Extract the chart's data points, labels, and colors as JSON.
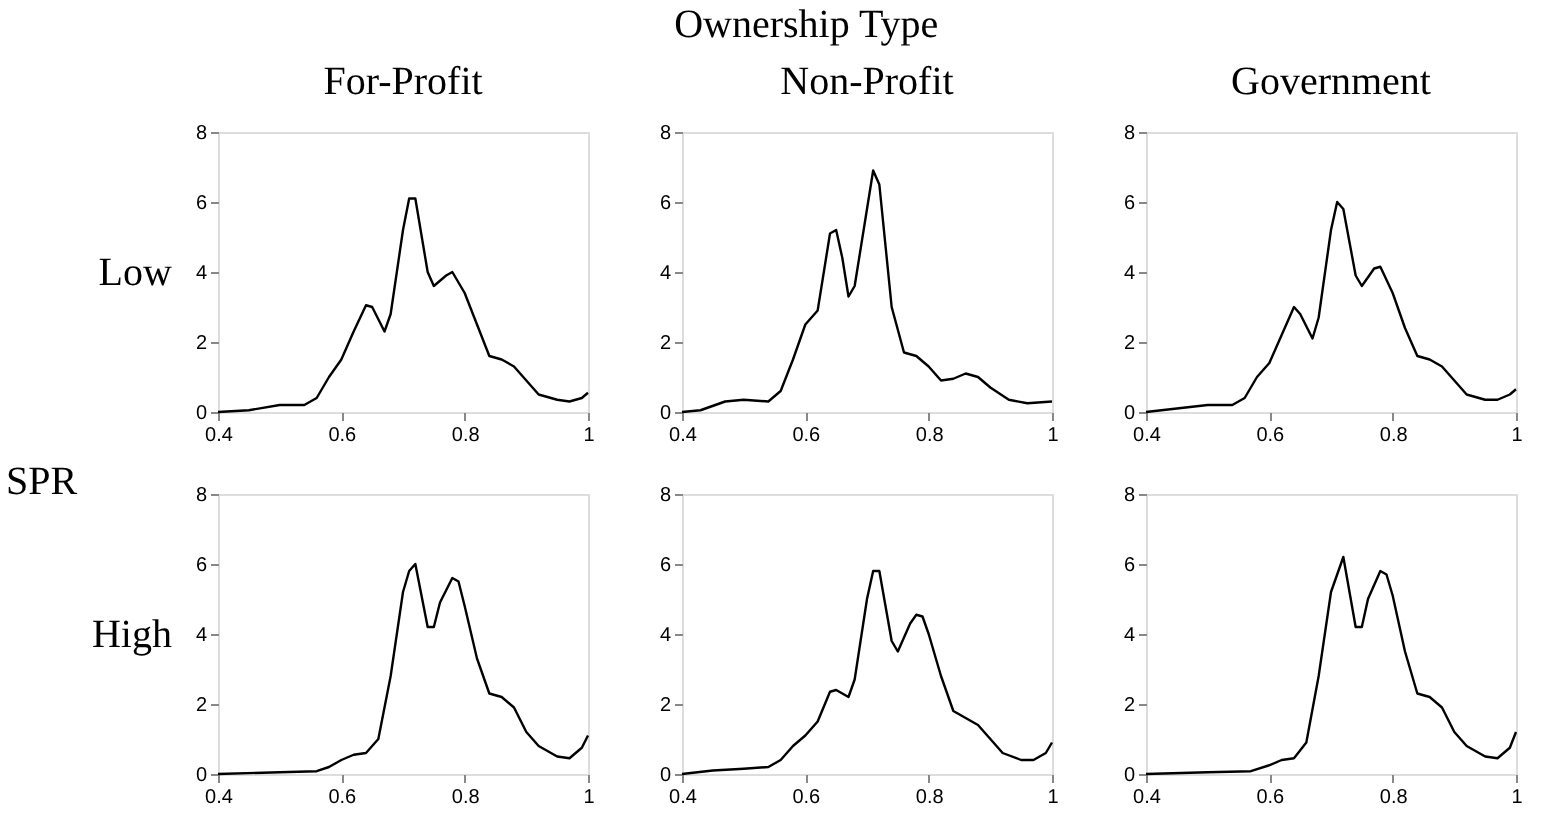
{
  "chart_data": [
    {
      "type": "line",
      "title": "For-Profit",
      "ylabel": "Low",
      "annotations": [
        "Ownership Type",
        "SPR"
      ],
      "color": "#000000",
      "xlim": [
        0.4,
        1
      ],
      "xticks": [
        0.4,
        0.6,
        0.8,
        1
      ],
      "ylim": [
        0,
        8
      ],
      "yticks": [
        0,
        2,
        4,
        6,
        8
      ],
      "grid": false,
      "x": [
        0.4,
        0.45,
        0.5,
        0.54,
        0.56,
        0.58,
        0.6,
        0.62,
        0.64,
        0.65,
        0.67,
        0.68,
        0.7,
        0.71,
        0.72,
        0.74,
        0.75,
        0.77,
        0.78,
        0.8,
        0.82,
        0.84,
        0.86,
        0.88,
        0.9,
        0.92,
        0.95,
        0.97,
        0.99,
        1.0
      ],
      "values": [
        0,
        0.05,
        0.2,
        0.2,
        0.4,
        1.0,
        1.5,
        2.3,
        3.05,
        3.0,
        2.3,
        2.8,
        5.2,
        6.1,
        6.1,
        4.0,
        3.6,
        3.9,
        4.0,
        3.4,
        2.5,
        1.6,
        1.5,
        1.3,
        0.9,
        0.5,
        0.35,
        0.3,
        0.4,
        0.55
      ]
    },
    {
      "type": "line",
      "title": "Non-Profit",
      "color": "#000000",
      "xlim": [
        0.4,
        1
      ],
      "xticks": [
        0.4,
        0.6,
        0.8,
        1
      ],
      "ylim": [
        0,
        8
      ],
      "yticks": [
        0,
        2,
        4,
        6,
        8
      ],
      "grid": false,
      "x": [
        0.4,
        0.43,
        0.47,
        0.5,
        0.54,
        0.56,
        0.58,
        0.6,
        0.62,
        0.64,
        0.65,
        0.66,
        0.67,
        0.68,
        0.7,
        0.71,
        0.72,
        0.74,
        0.76,
        0.78,
        0.8,
        0.82,
        0.84,
        0.86,
        0.88,
        0.9,
        0.93,
        0.96,
        1.0
      ],
      "values": [
        0,
        0.05,
        0.3,
        0.35,
        0.3,
        0.6,
        1.5,
        2.5,
        2.9,
        5.1,
        5.2,
        4.4,
        3.3,
        3.6,
        5.8,
        6.9,
        6.5,
        3.0,
        1.7,
        1.6,
        1.3,
        0.9,
        0.95,
        1.1,
        1.0,
        0.7,
        0.35,
        0.25,
        0.3
      ]
    },
    {
      "type": "line",
      "title": "Government",
      "color": "#000000",
      "xlim": [
        0.4,
        1
      ],
      "xticks": [
        0.4,
        0.6,
        0.8,
        1
      ],
      "ylim": [
        0,
        8
      ],
      "yticks": [
        0,
        2,
        4,
        6,
        8
      ],
      "grid": false,
      "x": [
        0.4,
        0.5,
        0.54,
        0.56,
        0.58,
        0.6,
        0.62,
        0.64,
        0.65,
        0.67,
        0.68,
        0.7,
        0.71,
        0.72,
        0.74,
        0.75,
        0.77,
        0.78,
        0.8,
        0.82,
        0.84,
        0.86,
        0.88,
        0.9,
        0.92,
        0.95,
        0.97,
        0.99,
        1.0
      ],
      "values": [
        0,
        0.2,
        0.2,
        0.4,
        1.0,
        1.4,
        2.2,
        3.0,
        2.8,
        2.1,
        2.7,
        5.2,
        6.0,
        5.8,
        3.9,
        3.6,
        4.1,
        4.15,
        3.4,
        2.4,
        1.6,
        1.5,
        1.3,
        0.9,
        0.5,
        0.35,
        0.35,
        0.5,
        0.65
      ]
    },
    {
      "type": "line",
      "ylabel": "High",
      "color": "#000000",
      "xlim": [
        0.4,
        1
      ],
      "xticks": [
        0.4,
        0.6,
        0.8,
        1
      ],
      "ylim": [
        0,
        8
      ],
      "yticks": [
        0,
        2,
        4,
        6,
        8
      ],
      "grid": false,
      "x": [
        0.4,
        0.5,
        0.56,
        0.58,
        0.6,
        0.62,
        0.64,
        0.66,
        0.68,
        0.7,
        0.71,
        0.72,
        0.74,
        0.75,
        0.76,
        0.78,
        0.79,
        0.8,
        0.82,
        0.84,
        0.86,
        0.88,
        0.9,
        0.92,
        0.95,
        0.97,
        0.99,
        1.0
      ],
      "values": [
        0,
        0.05,
        0.08,
        0.2,
        0.4,
        0.55,
        0.6,
        1.0,
        2.8,
        5.2,
        5.8,
        6.0,
        4.2,
        4.2,
        4.9,
        5.6,
        5.5,
        4.8,
        3.3,
        2.3,
        2.2,
        1.9,
        1.2,
        0.8,
        0.5,
        0.45,
        0.75,
        1.1
      ]
    },
    {
      "type": "line",
      "color": "#000000",
      "xlim": [
        0.4,
        1
      ],
      "xticks": [
        0.4,
        0.6,
        0.8,
        1
      ],
      "ylim": [
        0,
        8
      ],
      "yticks": [
        0,
        2,
        4,
        6,
        8
      ],
      "grid": false,
      "x": [
        0.4,
        0.45,
        0.5,
        0.54,
        0.56,
        0.58,
        0.6,
        0.62,
        0.64,
        0.65,
        0.67,
        0.68,
        0.7,
        0.71,
        0.72,
        0.74,
        0.75,
        0.77,
        0.78,
        0.79,
        0.8,
        0.82,
        0.84,
        0.86,
        0.88,
        0.9,
        0.92,
        0.95,
        0.97,
        0.99,
        1.0
      ],
      "values": [
        0,
        0.1,
        0.15,
        0.2,
        0.4,
        0.8,
        1.1,
        1.5,
        2.35,
        2.4,
        2.2,
        2.7,
        5.0,
        5.8,
        5.8,
        3.8,
        3.5,
        4.3,
        4.55,
        4.5,
        4.0,
        2.8,
        1.8,
        1.6,
        1.4,
        1.0,
        0.6,
        0.4,
        0.4,
        0.6,
        0.9
      ]
    },
    {
      "type": "line",
      "color": "#000000",
      "xlim": [
        0.4,
        1
      ],
      "xticks": [
        0.4,
        0.6,
        0.8,
        1
      ],
      "ylim": [
        0,
        8
      ],
      "yticks": [
        0,
        2,
        4,
        6,
        8
      ],
      "grid": false,
      "x": [
        0.4,
        0.5,
        0.57,
        0.6,
        0.62,
        0.64,
        0.66,
        0.68,
        0.7,
        0.72,
        0.74,
        0.75,
        0.76,
        0.78,
        0.79,
        0.8,
        0.82,
        0.84,
        0.86,
        0.88,
        0.9,
        0.92,
        0.95,
        0.97,
        0.99,
        1.0
      ],
      "values": [
        0,
        0.05,
        0.08,
        0.25,
        0.4,
        0.45,
        0.9,
        2.8,
        5.2,
        6.2,
        4.2,
        4.2,
        5.0,
        5.8,
        5.7,
        5.1,
        3.5,
        2.3,
        2.2,
        1.9,
        1.2,
        0.8,
        0.5,
        0.45,
        0.75,
        1.2
      ]
    }
  ]
}
